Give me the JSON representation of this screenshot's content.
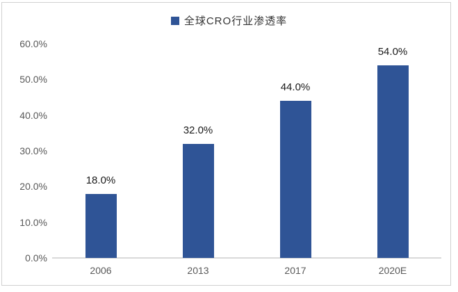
{
  "legend": {
    "label": "全球CRO行业渗透率",
    "marker_color": "#2F5496"
  },
  "chart_data": {
    "type": "bar",
    "title": "全球CRO行业渗透率",
    "series_name": "全球CRO行业渗透率",
    "categories": [
      "2006",
      "2013",
      "2017",
      "2020E"
    ],
    "values": [
      18.0,
      32.0,
      44.0,
      54.0
    ],
    "data_labels": [
      "18.0%",
      "32.0%",
      "44.0%",
      "54.0%"
    ],
    "xlabel": "",
    "ylabel": "",
    "ylim": [
      0,
      60
    ],
    "y_tick_values": [
      0,
      10,
      20,
      30,
      40,
      50,
      60
    ],
    "y_tick_labels": [
      "0.0%",
      "10.0%",
      "20.0%",
      "30.0%",
      "40.0%",
      "50.0%",
      "60.0%"
    ],
    "grid": false,
    "legend_position": "top-center",
    "bar_color": "#2F5496"
  },
  "colors": {
    "bar": "#2F5496",
    "axis_text": "#595959",
    "data_label_text": "#1a1a1a",
    "legend_text": "#333333",
    "baseline": "#d9d9d9",
    "frame_border": "#d0d0d0",
    "background": "#ffffff"
  }
}
